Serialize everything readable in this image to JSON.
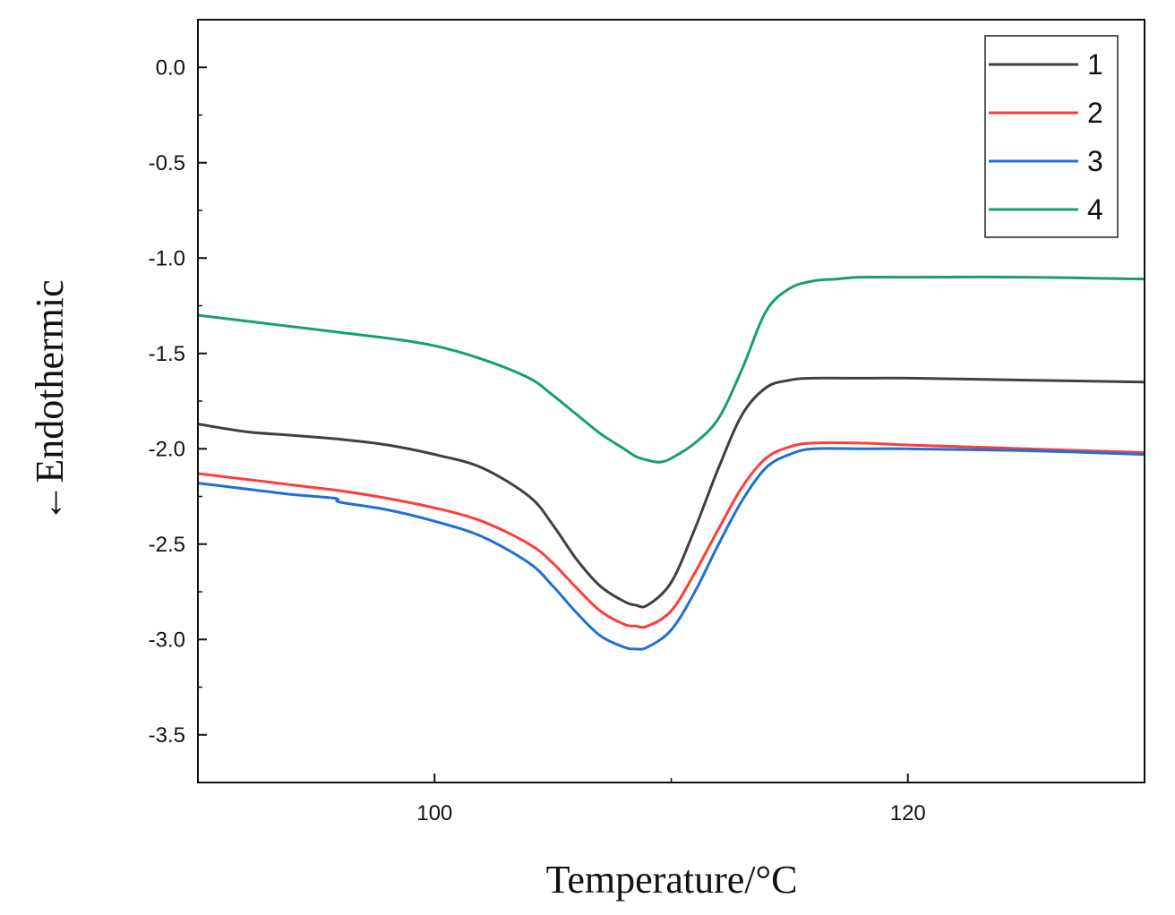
{
  "chart_data": {
    "type": "line",
    "title": "",
    "xlabel": "Temperature/°C",
    "ylabel": "←Endothermic",
    "xlim": [
      90,
      130
    ],
    "ylim": [
      -3.75,
      0.25
    ],
    "xticks": [
      100,
      120
    ],
    "yticks": [
      0.0,
      -0.5,
      -1.0,
      -1.5,
      -2.0,
      -2.5,
      -3.0,
      -3.5
    ],
    "ytick_labels": [
      "0.0",
      "-0.5",
      "-1.0",
      "-1.5",
      "-2.0",
      "-2.5",
      "-3.0",
      "-3.5"
    ],
    "legend_position": "top-right",
    "series": [
      {
        "name": "1",
        "color": "#404040",
        "x": [
          90,
          92,
          94,
          96,
          98,
          100,
          102,
          104,
          105,
          106,
          107,
          108,
          108.5,
          109,
          110,
          111,
          112,
          113,
          114,
          115,
          116,
          118,
          120,
          125,
          130
        ],
        "y": [
          -1.87,
          -1.91,
          -1.93,
          -1.95,
          -1.98,
          -2.03,
          -2.1,
          -2.25,
          -2.4,
          -2.58,
          -2.72,
          -2.8,
          -2.82,
          -2.82,
          -2.7,
          -2.42,
          -2.1,
          -1.82,
          -1.68,
          -1.64,
          -1.63,
          -1.63,
          -1.63,
          -1.64,
          -1.65
        ]
      },
      {
        "name": "2",
        "color": "#ff3b3b",
        "x": [
          90,
          92,
          94,
          96,
          98,
          100,
          102,
          104,
          105,
          106,
          107,
          108,
          108.5,
          109,
          110,
          111,
          112,
          113,
          114,
          115,
          116,
          118,
          120,
          125,
          130
        ],
        "y": [
          -2.13,
          -2.16,
          -2.19,
          -2.22,
          -2.26,
          -2.31,
          -2.38,
          -2.5,
          -2.6,
          -2.73,
          -2.85,
          -2.92,
          -2.93,
          -2.93,
          -2.85,
          -2.65,
          -2.42,
          -2.2,
          -2.05,
          -1.99,
          -1.97,
          -1.97,
          -1.98,
          -2.0,
          -2.02
        ]
      },
      {
        "name": "3",
        "color": "#1f6fd8",
        "x": [
          90,
          92,
          94,
          95.8,
          96,
          98,
          100,
          102,
          104,
          105,
          106,
          107,
          108,
          108.5,
          109,
          110,
          111,
          112,
          113,
          114,
          115,
          116,
          118,
          120,
          125,
          130
        ],
        "y": [
          -2.18,
          -2.21,
          -2.24,
          -2.26,
          -2.28,
          -2.32,
          -2.38,
          -2.46,
          -2.6,
          -2.72,
          -2.86,
          -2.98,
          -3.04,
          -3.05,
          -3.04,
          -2.95,
          -2.75,
          -2.5,
          -2.27,
          -2.1,
          -2.03,
          -2.0,
          -2.0,
          -2.0,
          -2.01,
          -2.03
        ]
      },
      {
        "name": "4",
        "color": "#16a06a",
        "x": [
          90,
          92,
          94,
          96,
          98,
          100,
          102,
          104,
          105,
          106,
          107,
          108,
          108.5,
          109,
          109.5,
          110,
          111,
          112,
          113,
          114,
          115,
          116,
          117,
          118,
          120,
          125,
          130
        ],
        "y": [
          -1.3,
          -1.33,
          -1.36,
          -1.39,
          -1.42,
          -1.46,
          -1.53,
          -1.63,
          -1.72,
          -1.82,
          -1.92,
          -2.0,
          -2.04,
          -2.06,
          -2.07,
          -2.05,
          -1.97,
          -1.84,
          -1.58,
          -1.28,
          -1.16,
          -1.12,
          -1.11,
          -1.1,
          -1.1,
          -1.1,
          -1.11
        ]
      }
    ]
  }
}
